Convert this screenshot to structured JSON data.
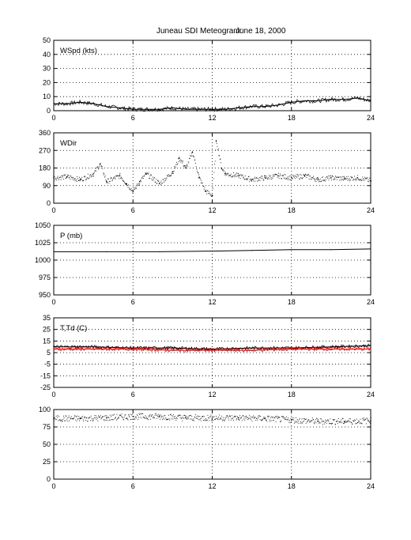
{
  "figure": {
    "title_left": "Juneau SDI Meteogram:",
    "title_right": "June 18, 2000"
  },
  "chart_data": [
    {
      "type": "line",
      "label": "WSpd (kts)",
      "xlim": [
        0,
        24
      ],
      "ylim": [
        0,
        50
      ],
      "xticks": [
        0,
        6,
        12,
        18,
        24
      ],
      "yticks": [
        0,
        10,
        20,
        30,
        40,
        50
      ],
      "grid": true,
      "series": [
        {
          "color": "#000000",
          "style": "line",
          "x": [
            0,
            1,
            2,
            3,
            4,
            5,
            6,
            7,
            8,
            9,
            10,
            11,
            12,
            13,
            14,
            15,
            16,
            17,
            18,
            19,
            20,
            21,
            22,
            23,
            24
          ],
          "y": [
            5,
            5,
            6,
            5,
            3,
            2,
            1,
            1,
            1,
            2,
            1,
            1,
            1,
            1,
            2,
            3,
            3,
            4,
            6,
            7,
            7,
            8,
            8,
            9,
            7
          ]
        }
      ]
    },
    {
      "type": "scatter",
      "label": "WDir",
      "xlim": [
        0,
        24
      ],
      "ylim": [
        0,
        360
      ],
      "xticks": [
        0,
        6,
        12,
        18,
        24
      ],
      "yticks": [
        0,
        90,
        180,
        270,
        360
      ],
      "grid": true,
      "series": [
        {
          "color": "#000000",
          "style": "dots",
          "x": [
            0,
            1,
            2,
            3,
            3.5,
            4,
            5,
            5.5,
            6,
            6.5,
            7,
            8,
            9,
            9.5,
            10,
            10.5,
            11,
            11.5,
            12,
            12.3,
            12.7,
            13,
            14,
            15,
            16,
            17,
            18,
            19,
            20,
            21,
            22,
            23,
            24
          ],
          "y": [
            130,
            135,
            120,
            150,
            200,
            110,
            140,
            100,
            60,
            110,
            150,
            100,
            160,
            230,
            180,
            260,
            130,
            60,
            40,
            320,
            180,
            150,
            140,
            120,
            130,
            140,
            130,
            140,
            120,
            130,
            125,
            130,
            115
          ]
        }
      ]
    },
    {
      "type": "line",
      "label": "P (mb)",
      "xlim": [
        0,
        24
      ],
      "ylim": [
        950,
        1050
      ],
      "xticks": [
        0,
        6,
        12,
        18,
        24
      ],
      "yticks": [
        950,
        975,
        1000,
        1025,
        1050
      ],
      "grid": true,
      "series": [
        {
          "color": "#000000",
          "style": "line",
          "x": [
            0,
            4,
            8,
            12,
            15,
            18,
            21,
            24
          ],
          "y": [
            1012,
            1012,
            1012,
            1013,
            1014,
            1015,
            1015,
            1016
          ]
        }
      ]
    },
    {
      "type": "line",
      "label": "T,Td (C)",
      "xlim": [
        0,
        24
      ],
      "ylim": [
        -25,
        35
      ],
      "xticks": [
        0,
        6,
        12,
        18,
        24
      ],
      "yticks": [
        -25,
        -15,
        -5,
        5,
        15,
        25,
        35
      ],
      "grid": true,
      "series": [
        {
          "color": "#000000",
          "style": "line",
          "x": [
            0,
            3,
            6,
            9,
            12,
            15,
            18,
            21,
            24
          ],
          "y": [
            10,
            10,
            9,
            9,
            8,
            9,
            9,
            10,
            11
          ]
        },
        {
          "color": "#ff0000",
          "style": "line",
          "x": [
            0,
            3,
            6,
            9,
            12,
            15,
            18,
            21,
            24
          ],
          "y": [
            8,
            8,
            8,
            7,
            7,
            7,
            8,
            8,
            8
          ]
        }
      ]
    },
    {
      "type": "scatter",
      "label": "",
      "xlim": [
        0,
        24
      ],
      "ylim": [
        0,
        100
      ],
      "xticks": [
        0,
        6,
        12,
        18,
        24
      ],
      "yticks": [
        0,
        25,
        50,
        75,
        100
      ],
      "grid": true,
      "series": [
        {
          "color": "#000000",
          "style": "dots",
          "x": [
            0,
            2,
            4,
            6,
            8,
            10,
            12,
            14,
            16,
            18,
            20,
            22,
            24
          ],
          "y": [
            87,
            87,
            88,
            90,
            90,
            88,
            88,
            88,
            87,
            85,
            83,
            83,
            84
          ]
        }
      ]
    }
  ]
}
